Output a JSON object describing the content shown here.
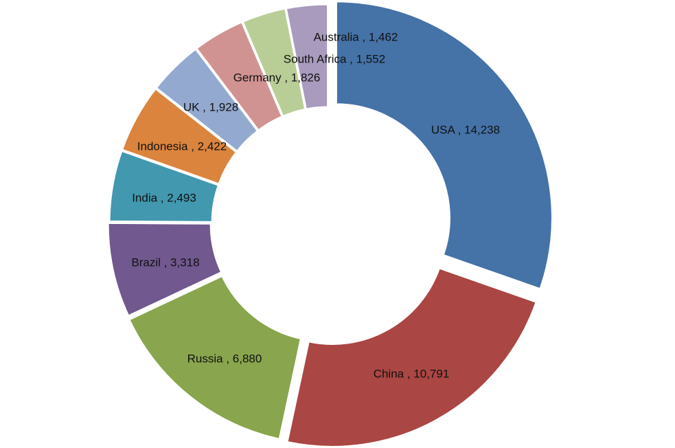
{
  "chart_data": {
    "type": "pie",
    "variant": "donut",
    "legend": "none",
    "slices": [
      {
        "name": "USA",
        "value": 14238,
        "label": "USA , 14,238",
        "color": "#4572A7"
      },
      {
        "name": "China",
        "value": 10791,
        "label": "China , 10,791",
        "color": "#AA4643"
      },
      {
        "name": "Russia",
        "value": 6880,
        "label": "Russia , 6,880",
        "color": "#89A54E"
      },
      {
        "name": "Brazil",
        "value": 3318,
        "label": "Brazil , 3,318",
        "color": "#71588F"
      },
      {
        "name": "India",
        "value": 2493,
        "label": "India , 2,493",
        "color": "#4198AF"
      },
      {
        "name": "Indonesia",
        "value": 2422,
        "label": "Indonesia , 2,422",
        "color": "#DB843D"
      },
      {
        "name": "UK",
        "value": 1928,
        "label": "UK , 1,928",
        "color": "#93A9CF"
      },
      {
        "name": "Germany",
        "value": 1826,
        "label": "Germany , 1,826",
        "color": "#D19392"
      },
      {
        "name": "South Africa",
        "value": 1552,
        "label": "South Africa , 1,552",
        "color": "#B9CD96"
      },
      {
        "name": "Australia",
        "value": 1462,
        "label": "Australia , 1,462",
        "color": "#A99BBD"
      }
    ]
  }
}
